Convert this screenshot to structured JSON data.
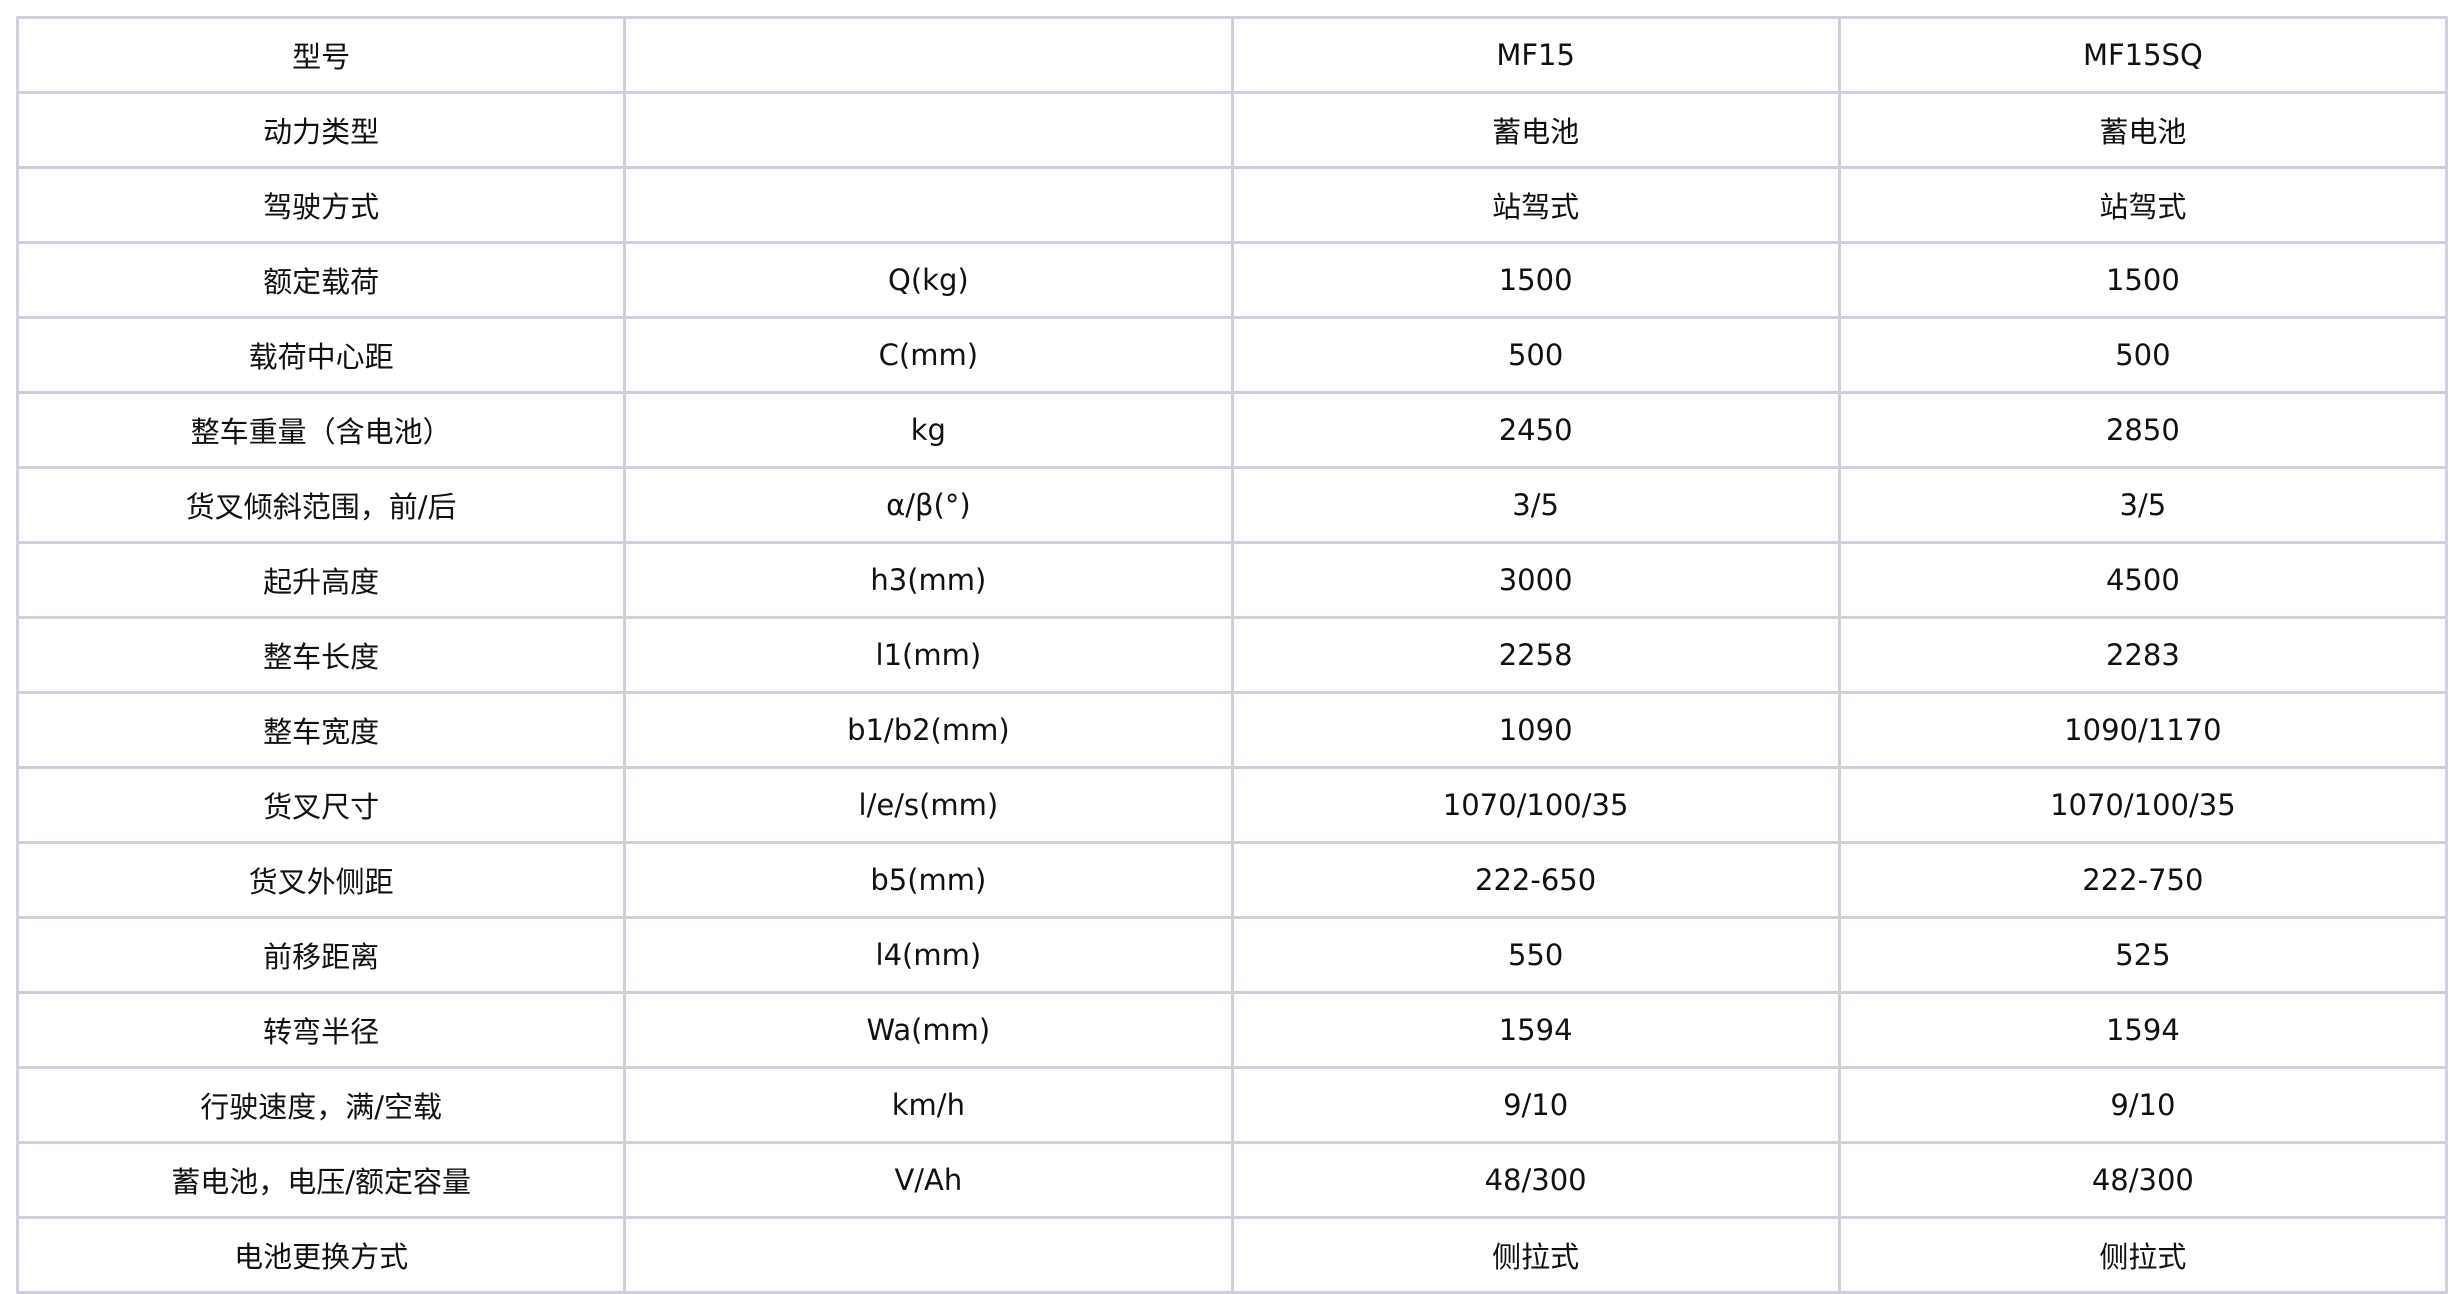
{
  "table": {
    "rows": [
      [
        "型号",
        "",
        "MF15",
        "MF15SQ"
      ],
      [
        "动力类型",
        "",
        "蓄电池",
        "蓄电池"
      ],
      [
        "驾驶方式",
        "",
        "站驾式",
        "站驾式"
      ],
      [
        "额定载荷",
        "Q(kg)",
        "1500",
        "1500"
      ],
      [
        "载荷中心距",
        "C(mm)",
        "500",
        "500"
      ],
      [
        "整车重量（含电池）",
        "kg",
        "2450",
        "2850"
      ],
      [
        "货叉倾斜范围，前/后",
        "α/β(°)",
        "3/5",
        "3/5"
      ],
      [
        "起升高度",
        "h3(mm)",
        "3000",
        "4500"
      ],
      [
        "整车长度",
        "l1(mm)",
        "2258",
        "2283"
      ],
      [
        "整车宽度",
        "b1/b2(mm)",
        "1090",
        "1090/1170"
      ],
      [
        "货叉尺寸",
        "l/e/s(mm)",
        "1070/100/35",
        "1070/100/35"
      ],
      [
        "货叉外侧距",
        "b5(mm)",
        "222-650",
        "222-750"
      ],
      [
        "前移距离",
        "l4(mm)",
        "550",
        "525"
      ],
      [
        "转弯半径",
        "Wa(mm)",
        "1594",
        "1594"
      ],
      [
        "行驶速度，满/空载",
        "km/h",
        "9/10",
        "9/10"
      ],
      [
        "蓄电池，电压/额定容量",
        "V/Ah",
        "48/300",
        "48/300"
      ],
      [
        "电池更换方式",
        "",
        "侧拉式",
        "侧拉式"
      ]
    ]
  },
  "colors": {
    "border": "#cfd0de",
    "text": "#111111"
  }
}
